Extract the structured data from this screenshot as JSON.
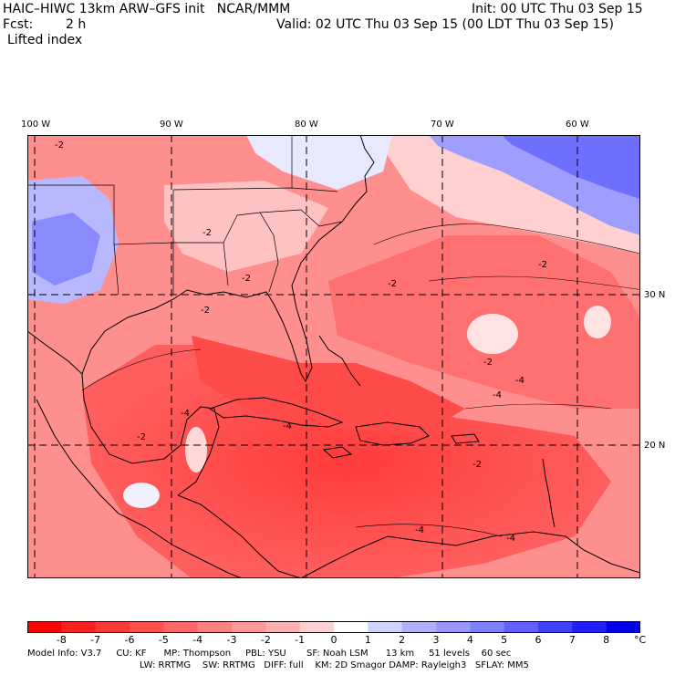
{
  "header": {
    "model_line": "HAIC–HIWC 13km ARW–GFS init   NCAR/MMM",
    "init_line": "Init: 00 UTC Thu 03 Sep 15",
    "fcst_label": "Fcst:",
    "fcst_value": "2 h",
    "valid_line": "Valid: 02 UTC Thu 03 Sep 15 (00 LDT Thu 03 Sep 15)",
    "field_name": "Lifted index"
  },
  "map": {
    "lon_labels": [
      "100 W",
      "90 W",
      "80 W",
      "70 W",
      "60 W"
    ],
    "lat_labels": [
      "30 N",
      "20 N"
    ],
    "contour_labels": [
      "-2",
      "-2",
      "-2",
      "-2",
      "-2",
      "-2",
      "-2",
      "-2",
      "-4",
      "-4",
      "-4",
      "-4",
      "-4",
      "-4",
      "-2"
    ],
    "colors": {
      "neg_strong": "#ff3b3b",
      "neg_mid": "#ff7a7a",
      "neg_light": "#ffc6c6",
      "neutral": "#ffffff",
      "pos_light": "#c9c9ff",
      "pos_mid": "#7d7dff",
      "pos_strong": "#3c3cff"
    }
  },
  "colorbar": {
    "ticks": [
      "-8",
      "-7",
      "-6",
      "-5",
      "-4",
      "-3",
      "-2",
      "-1",
      "0",
      "1",
      "2",
      "3",
      "4",
      "5",
      "6",
      "7",
      "8"
    ],
    "unit": "°C",
    "colors": [
      "#ff0000",
      "#ff2020",
      "#ff3838",
      "#ff5050",
      "#ff6868",
      "#ff8080",
      "#ff9898",
      "#ffb0b0",
      "#ffd2d2",
      "#ffffff",
      "#d2d2ff",
      "#b0b0ff",
      "#9898ff",
      "#8080ff",
      "#6060ff",
      "#4040ff",
      "#2020ff",
      "#0000ee"
    ]
  },
  "footer": {
    "line1": "Model Info: V3.7     CU: KF      MP: Thompson     PBL: YSU       SF: Noah LSM      13 km     51 levels    60 sec",
    "line2": "LW: RRTMG    SW: RRTMG   DIFF: full    KM: 2D Smagor DAMP: Rayleigh3   SFLAY: MM5"
  }
}
